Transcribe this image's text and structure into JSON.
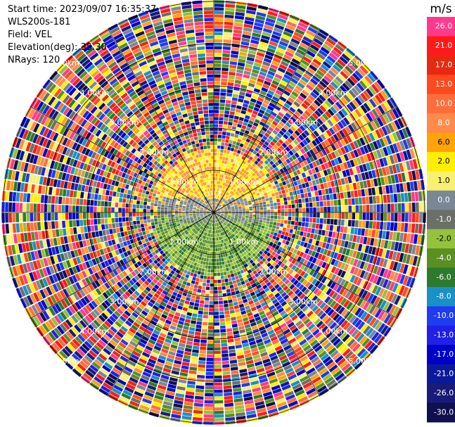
{
  "header": {
    "start_time": "Start time: 2023/09/07 16:35:37",
    "instrument": "WLS200s-181",
    "field": "Field: VEL",
    "elevation": "Elevation(deg): 35.30",
    "nrays": "NRays: 120"
  },
  "chart_data": {
    "type": "heatmap",
    "projection": "polar-ppi",
    "field": "VEL",
    "nrays": 120,
    "range_rings": [
      {
        "label": "1.00km"
      },
      {
        "label": "2.00km"
      },
      {
        "label": "3.00km"
      },
      {
        "label": "4.00km"
      },
      {
        "label": "5.00km"
      }
    ],
    "colorbar": {
      "unit": "m/s",
      "ticks": [
        "26.0",
        "21.0",
        "17.0",
        "13.0",
        "10.0",
        "8.0",
        "6.0",
        "2.0",
        "1.0",
        "0.0",
        "-1.0",
        "-2.0",
        "-4.0",
        "-6.0",
        "-8.0",
        "-10.0",
        "-13.0",
        "-17.0",
        "-21.0",
        "-26.0",
        "-30.0"
      ],
      "colors": [
        "#ff3a8c",
        "#ff1a1a",
        "#e62a12",
        "#ff4a1f",
        "#ff6e3a",
        "#ff8a4a",
        "#ffa30a",
        "#ffee00",
        "#f8f070",
        "#7b8794",
        "#6a7068",
        "#94c23a",
        "#5a8f22",
        "#2d7a2d",
        "#1a90c8",
        "#1f3cf0",
        "#2020e6",
        "#0000c8",
        "#0a1a9a",
        "#1a1a78",
        "#101050"
      ]
    },
    "valid_data_range_km": 1.5,
    "data_summary": "Near-range: positive velocities (orange/yellow, 2 to 8 m/s) in northern half, near-zero (gray) across centre band, negative velocities (green, -2 to -6 m/s) in southern half; beyond ~1.5 km noise (random colors)."
  },
  "colors": {
    "ring": "#000000",
    "ring_label": "#ffffff",
    "background": "#ffffff"
  }
}
